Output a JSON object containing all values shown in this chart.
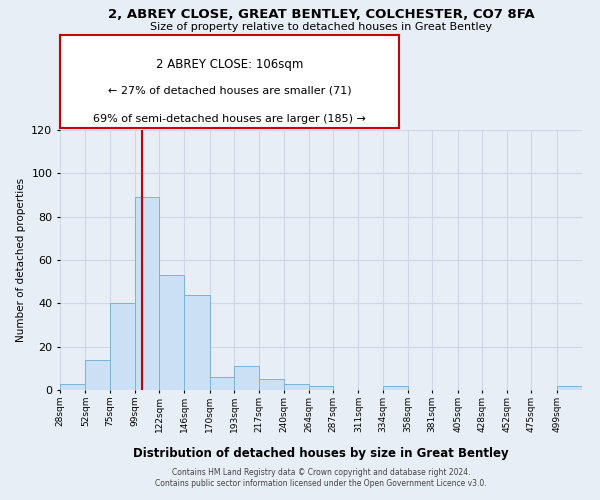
{
  "title": "2, ABREY CLOSE, GREAT BENTLEY, COLCHESTER, CO7 8FA",
  "subtitle": "Size of property relative to detached houses in Great Bentley",
  "xlabel": "Distribution of detached houses by size in Great Bentley",
  "ylabel": "Number of detached properties",
  "bar_values": [
    3,
    14,
    40,
    89,
    53,
    44,
    6,
    11,
    5,
    3,
    2,
    0,
    0,
    2,
    0,
    0,
    0,
    0,
    0,
    0,
    2
  ],
  "bin_labels": [
    "28sqm",
    "52sqm",
    "75sqm",
    "99sqm",
    "122sqm",
    "146sqm",
    "170sqm",
    "193sqm",
    "217sqm",
    "240sqm",
    "264sqm",
    "287sqm",
    "311sqm",
    "334sqm",
    "358sqm",
    "381sqm",
    "405sqm",
    "428sqm",
    "452sqm",
    "475sqm",
    "499sqm"
  ],
  "bar_color": "#cce0f5",
  "bar_edge_color": "#7ab3d9",
  "property_line_x": 106,
  "bin_edges": [
    28,
    52,
    75,
    99,
    122,
    146,
    170,
    193,
    217,
    240,
    264,
    287,
    311,
    334,
    358,
    381,
    405,
    428,
    452,
    475,
    499
  ],
  "annotation_title": "2 ABREY CLOSE: 106sqm",
  "annotation_smaller": "← 27% of detached houses are smaller (71)",
  "annotation_larger": "69% of semi-detached houses are larger (185) →",
  "annotation_box_facecolor": "#ffffff",
  "annotation_box_edgecolor": "#cc0000",
  "vline_color": "#cc0000",
  "ylim": [
    0,
    120
  ],
  "yticks": [
    0,
    20,
    40,
    60,
    80,
    100,
    120
  ],
  "grid_color": "#d0d8e8",
  "background_color": "#e8eef5",
  "plot_bg_color": "#e8eef5",
  "footer_line1": "Contains HM Land Registry data © Crown copyright and database right 2024.",
  "footer_line2": "Contains public sector information licensed under the Open Government Licence v3.0."
}
